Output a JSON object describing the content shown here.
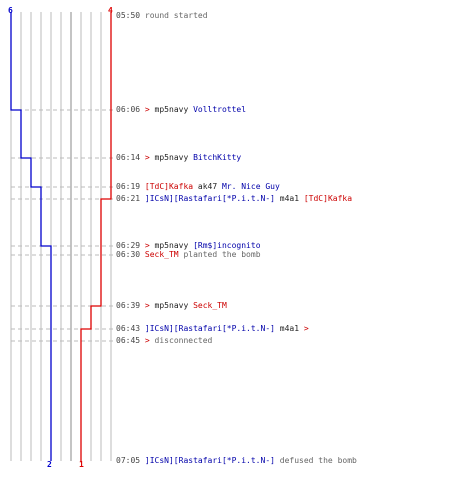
{
  "colors": {
    "ct": "#0000cc",
    "t": "#dd0000",
    "grid": "#bbbbbb",
    "dash": "#bbbbbb",
    "text": "#333333"
  },
  "team_ct": {
    "start_count": "6",
    "end_count": "2"
  },
  "team_t": {
    "start_count": "4",
    "end_count": "1"
  },
  "events": [
    {
      "time": "05:50",
      "parts": [
        {
          "text": "round started",
          "style": "gray"
        }
      ]
    },
    {
      "time": "06:06",
      "parts": [
        {
          "text": "> ",
          "style": "red"
        },
        {
          "text": "mp5navy ",
          "style": "plain"
        },
        {
          "text": "Volltrottel",
          "style": "blue"
        }
      ]
    },
    {
      "time": "06:14",
      "parts": [
        {
          "text": "> ",
          "style": "red"
        },
        {
          "text": "mp5navy ",
          "style": "plain"
        },
        {
          "text": "BitchKitty",
          "style": "blue"
        }
      ]
    },
    {
      "time": "06:19",
      "parts": [
        {
          "text": "[TdC]Kafka",
          "style": "red"
        },
        {
          "text": " ak47 ",
          "style": "plain"
        },
        {
          "text": "Mr. Nice Guy",
          "style": "blue"
        }
      ]
    },
    {
      "time": "06:21",
      "parts": [
        {
          "text": "]ICsN][Rastafari[*P.i.t.N-]",
          "style": "blue"
        },
        {
          "text": " m4a1 ",
          "style": "plain"
        },
        {
          "text": "[TdC]Kafka",
          "style": "red"
        }
      ]
    },
    {
      "time": "06:29",
      "parts": [
        {
          "text": "> ",
          "style": "red"
        },
        {
          "text": "mp5navy ",
          "style": "plain"
        },
        {
          "text": "[Rm$]incognito",
          "style": "blue"
        }
      ]
    },
    {
      "time": "06:30",
      "parts": [
        {
          "text": "Seck_TM",
          "style": "red"
        },
        {
          "text": " planted the bomb",
          "style": "gray"
        }
      ]
    },
    {
      "time": "06:39",
      "parts": [
        {
          "text": "> ",
          "style": "red"
        },
        {
          "text": "mp5navy ",
          "style": "plain"
        },
        {
          "text": "Seck_TM",
          "style": "red"
        }
      ]
    },
    {
      "time": "06:43",
      "parts": [
        {
          "text": "]ICsN][Rastafari[*P.i.t.N-]",
          "style": "blue"
        },
        {
          "text": " m4a1 ",
          "style": "plain"
        },
        {
          "text": ">",
          "style": "red"
        }
      ]
    },
    {
      "time": "06:45",
      "parts": [
        {
          "text": "> ",
          "style": "red"
        },
        {
          "text": "disconnected",
          "style": "gray"
        }
      ]
    },
    {
      "time": "07:05",
      "parts": [
        {
          "text": "]ICsN][Rastafari[*P.i.t.N-]",
          "style": "blue"
        },
        {
          "text": " defused the bomb",
          "style": "gray"
        }
      ]
    }
  ]
}
